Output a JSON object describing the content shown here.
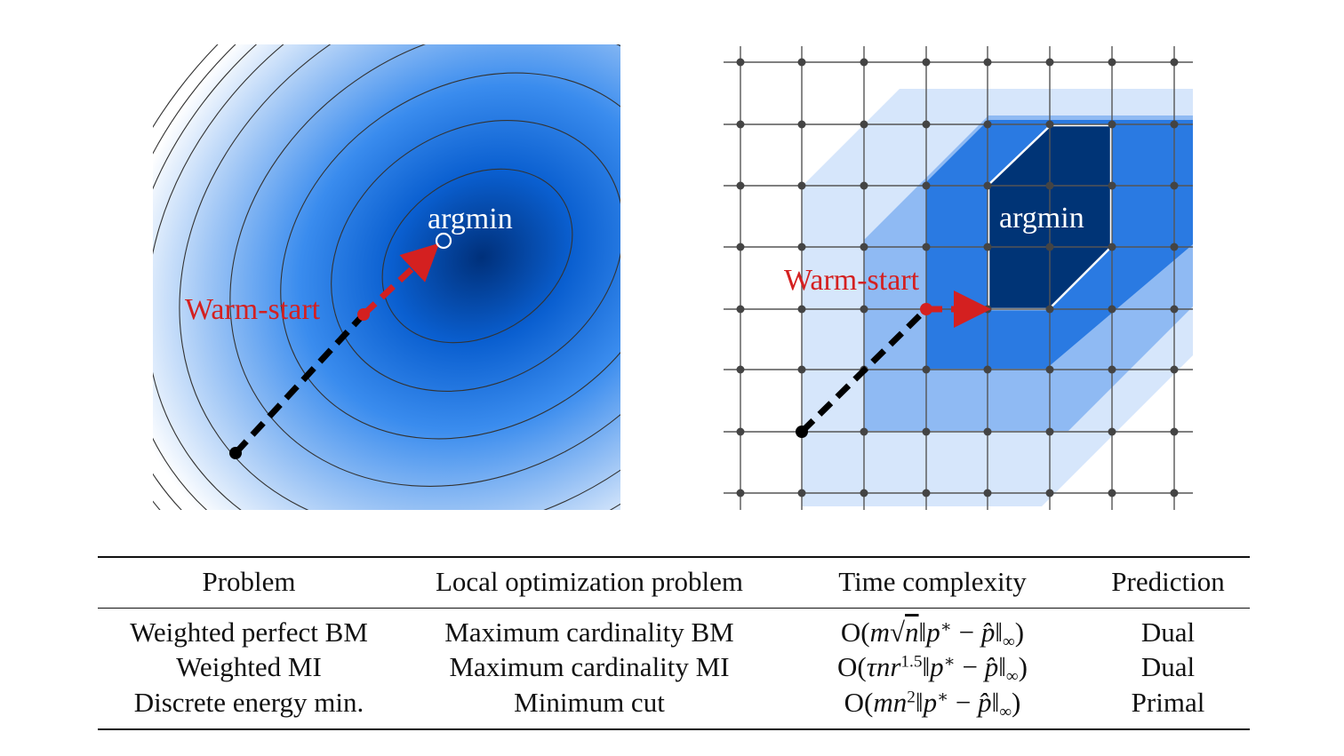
{
  "figure": {
    "left": {
      "argmin_label": "argmin",
      "warmstart_label": "Warm-start"
    },
    "right": {
      "argmin_label": "argmin",
      "warmstart_label": "Warm-start"
    },
    "colors": {
      "blue_dark": "#003476",
      "blue_mid": "#2a7ae2",
      "blue_light": "#8fbaf3",
      "blue_pale": "#d6e6fb",
      "warm_start_red": "#d42020",
      "path_black": "#000000"
    }
  },
  "table": {
    "headers": [
      "Problem",
      "Local optimization problem",
      "Time complexity",
      "Prediction"
    ],
    "rows": [
      {
        "problem": "Weighted perfect BM",
        "local": "Maximum cardinality BM",
        "complexity": "O(m√n‖p* − p̂‖∞)",
        "prediction": "Dual"
      },
      {
        "problem": "Weighted MI",
        "local": "Maximum cardinality MI",
        "complexity": "O(τnr^1.5‖p* − p̂‖∞)",
        "prediction": "Dual"
      },
      {
        "problem": "Discrete energy min.",
        "local": "Minimum cut",
        "complexity": "O(mn²‖p* − p̂‖∞)",
        "prediction": "Primal"
      }
    ]
  }
}
